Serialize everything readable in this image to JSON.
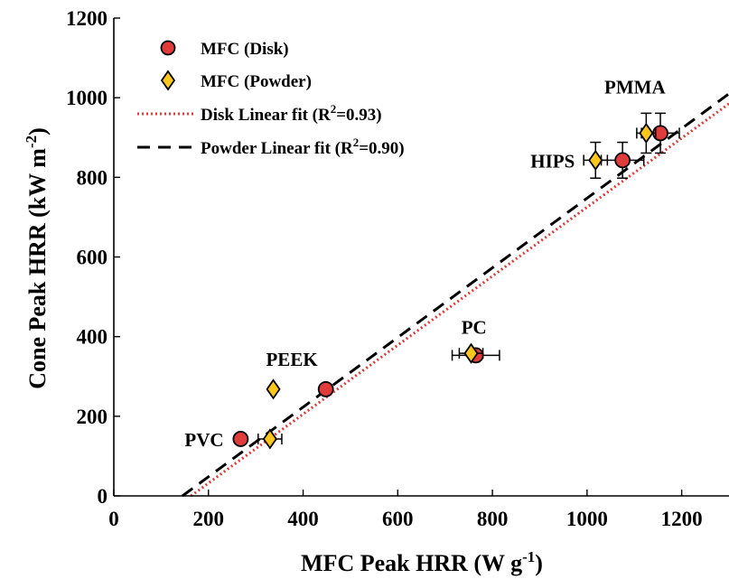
{
  "chart_data": {
    "type": "scatter",
    "xlabel": "MFC Peak HRR (W g",
    "xlabel_sup": "-1",
    "xlabel_tail": ")",
    "ylabel": "Cone Peak HRR (kW m",
    "ylabel_sup": "-2",
    "ylabel_tail": ")",
    "xlim": [
      0,
      1300
    ],
    "ylim": [
      0,
      1200
    ],
    "xticks": [
      0,
      200,
      400,
      600,
      800,
      1000,
      1200
    ],
    "yticks": [
      0,
      200,
      400,
      600,
      800,
      1000,
      1200
    ],
    "grid": false,
    "legend_position": "top-left",
    "series": [
      {
        "name": "MFC (Disk)",
        "marker": "circle",
        "color": "#e03c3c",
        "points": [
          {
            "label": "PVC",
            "x": 268,
            "y": 143,
            "xerr": 0,
            "yerr": 0
          },
          {
            "label": "PEEK",
            "x": 448,
            "y": 268,
            "xerr": 0,
            "yerr": 0
          },
          {
            "label": "PC",
            "x": 765,
            "y": 353,
            "xerr": 50,
            "yerr": 0
          },
          {
            "label": "HIPS",
            "x": 1075,
            "y": 843,
            "xerr": 45,
            "yerr": 45
          },
          {
            "label": "PMMA",
            "x": 1155,
            "y": 911,
            "xerr": 40,
            "yerr": 50
          }
        ]
      },
      {
        "name": "MFC (Powder)",
        "marker": "diamond",
        "color": "#ffc61e",
        "points": [
          {
            "label": "PVC",
            "x": 330,
            "y": 143,
            "xerr": 25,
            "yerr": 0
          },
          {
            "label": "PEEK",
            "x": 337,
            "y": 268,
            "xerr": 0,
            "yerr": 0
          },
          {
            "label": "PC",
            "x": 755,
            "y": 358,
            "xerr": 25,
            "yerr": 0
          },
          {
            "label": "HIPS",
            "x": 1018,
            "y": 843,
            "xerr": 25,
            "yerr": 45
          },
          {
            "label": "PMMA",
            "x": 1125,
            "y": 911,
            "xerr": 20,
            "yerr": 50
          }
        ]
      }
    ],
    "fits": [
      {
        "name": "Disk Linear fit (R",
        "sup": "2",
        "tail": "=0.93)",
        "style": "dotted",
        "color": "#e03c3c",
        "x": [
          163,
          1300
        ],
        "y": [
          0,
          985
        ]
      },
      {
        "name": "Powder Linear fit (R",
        "sup": "2",
        "tail": "=0.90)",
        "style": "dashed",
        "color": "#000000",
        "x": [
          145,
          1300
        ],
        "y": [
          0,
          1010
        ]
      }
    ],
    "point_labels": [
      {
        "text": "PVC",
        "x": 268,
        "y": 143
      },
      {
        "text": "PEEK",
        "x": 398,
        "y": 268
      },
      {
        "text": "PC",
        "x": 765,
        "y": 353
      },
      {
        "text": "HIPS",
        "x": 1018,
        "y": 843
      },
      {
        "text": "PMMA",
        "x": 1155,
        "y": 911
      }
    ]
  }
}
